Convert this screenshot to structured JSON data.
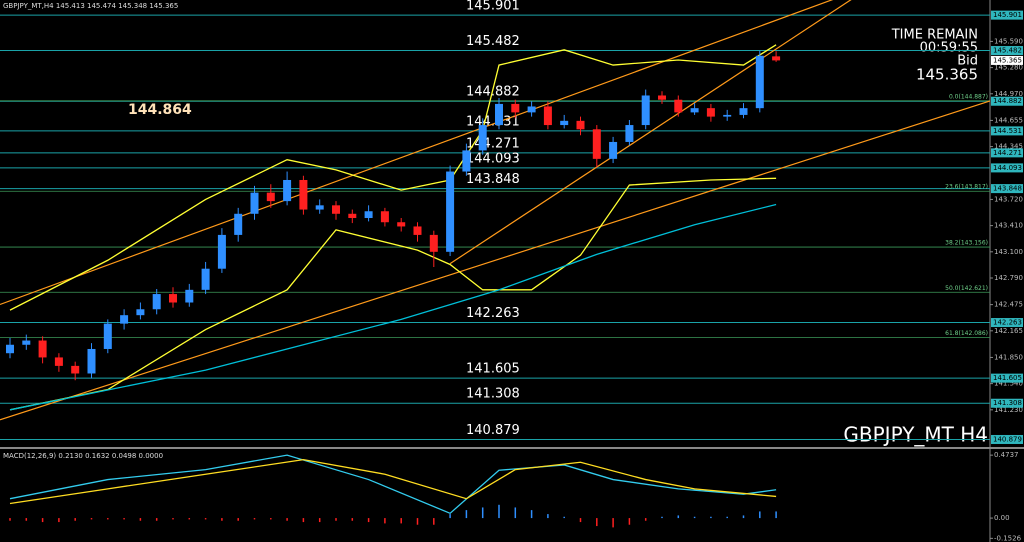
{
  "chart_data": [
    {
      "type": "candlestick",
      "title": "GBPJPY_MT,H4  145.413 145.474 145.348 145.365",
      "watermark": "GBPJPY_MT H4",
      "timer": {
        "label": "TIME REMAIN",
        "value": "00:59:55",
        "bid_label": "Bid"
      },
      "price_label": 144.864,
      "up_color": "#2f8fff",
      "down_color": "#ff2020",
      "open": [
        141.9,
        142.0,
        142.05,
        141.85,
        141.75,
        141.66,
        141.95,
        142.25,
        142.35,
        142.42,
        142.6,
        142.5,
        142.65,
        142.9,
        143.3,
        143.55,
        143.8,
        143.7,
        143.95,
        143.6,
        143.65,
        143.55,
        143.5,
        143.58,
        143.45,
        143.4,
        143.3,
        143.1,
        144.05,
        144.3,
        144.6,
        144.85,
        144.75,
        144.82,
        144.6,
        144.65,
        144.55,
        144.2,
        144.4,
        144.6,
        144.95,
        144.9,
        144.75,
        144.8,
        144.7,
        144.72,
        144.8,
        145.413
      ],
      "high": [
        142.08,
        142.12,
        142.1,
        141.9,
        141.8,
        142.02,
        142.3,
        142.42,
        142.5,
        142.66,
        142.68,
        142.72,
        142.98,
        143.38,
        143.62,
        143.88,
        143.9,
        144.05,
        144.0,
        143.72,
        143.7,
        143.6,
        143.65,
        143.62,
        143.5,
        143.45,
        143.35,
        144.12,
        144.38,
        144.68,
        144.92,
        144.9,
        144.88,
        144.88,
        144.72,
        144.7,
        144.6,
        144.46,
        144.66,
        145.02,
        145.0,
        144.95,
        144.86,
        144.85,
        144.78,
        144.86,
        145.48,
        145.474
      ],
      "low": [
        141.84,
        141.94,
        141.78,
        141.68,
        141.58,
        141.6,
        141.9,
        142.18,
        142.3,
        142.36,
        142.44,
        142.45,
        142.6,
        142.85,
        143.22,
        143.48,
        143.62,
        143.65,
        143.54,
        143.55,
        143.48,
        143.44,
        143.46,
        143.4,
        143.34,
        143.22,
        142.92,
        143.05,
        144.0,
        144.25,
        144.55,
        144.68,
        144.7,
        144.55,
        144.56,
        144.48,
        144.1,
        144.15,
        144.36,
        144.55,
        144.85,
        144.7,
        144.72,
        144.64,
        144.65,
        144.68,
        144.75,
        145.348
      ],
      "close": [
        142.0,
        142.05,
        141.85,
        141.75,
        141.66,
        141.95,
        142.25,
        142.35,
        142.42,
        142.6,
        142.5,
        142.65,
        142.9,
        143.3,
        143.55,
        143.8,
        143.7,
        143.95,
        143.6,
        143.65,
        143.55,
        143.5,
        143.58,
        143.45,
        143.4,
        143.3,
        143.1,
        144.05,
        144.3,
        144.6,
        144.85,
        144.75,
        144.82,
        144.6,
        144.65,
        144.55,
        144.2,
        144.4,
        144.6,
        144.95,
        144.9,
        144.75,
        144.8,
        144.7,
        144.72,
        144.8,
        145.42,
        145.365
      ],
      "ylim": [
        140.79,
        146.08
      ],
      "yticks": [
        {
          "value": 145.59,
          "label": "145.590"
        },
        {
          "value": 145.28,
          "label": "145.280"
        },
        {
          "value": 144.97,
          "label": "144.970"
        },
        144.655,
        144.345,
        {
          "value": 143.72,
          "label": "143.720"
        },
        {
          "value": 143.41,
          "label": "143.410"
        },
        {
          "value": 143.1,
          "label": "143.100"
        },
        {
          "value": 142.79,
          "label": "142.790"
        },
        142.475,
        142.165,
        {
          "value": 141.85,
          "label": "141.850"
        },
        {
          "value": 141.54,
          "label": "141.540"
        },
        {
          "value": 141.23,
          "label": "141.230"
        }
      ],
      "grid": false,
      "level_color": "#1aa3a8",
      "levels": [
        145.901,
        145.482,
        144.882,
        144.531,
        144.271,
        144.093,
        143.848,
        142.263,
        141.605,
        141.308,
        140.879
      ],
      "fib_color": "#3c9a5a",
      "fib_levels": [
        {
          "value": 144.887,
          "label": "0.0(144.887)"
        },
        {
          "value": 143.817,
          "label": "23.6(143.817)"
        },
        {
          "value": 143.156,
          "label": "38.2(143.156)"
        },
        {
          "value": 142.621,
          "label": "50.0(142.621)"
        },
        {
          "value": 142.086,
          "label": "61.8(142.086)"
        }
      ],
      "overlays": [
        {
          "color": "#ffff33",
          "x": [
            0,
            6,
            12,
            17,
            20,
            24,
            27,
            29,
            30,
            34,
            37,
            41,
            45,
            47
          ],
          "values": [
            142.41,
            143.0,
            143.72,
            144.19,
            144.07,
            143.83,
            143.95,
            144.54,
            145.31,
            145.49,
            145.31,
            145.37,
            145.31,
            145.55
          ]
        },
        {
          "color": "#ffff33",
          "x": [
            0,
            6,
            12,
            17,
            20,
            25,
            27,
            29,
            32,
            35,
            38,
            43,
            47
          ],
          "values": [
            141.23,
            141.47,
            142.18,
            142.65,
            143.36,
            143.12,
            142.95,
            142.65,
            142.65,
            143.06,
            143.89,
            143.95,
            143.97
          ]
        },
        {
          "color": "#00bfd8",
          "x": [
            0,
            12,
            24,
            30,
            36,
            42,
            47
          ],
          "values": [
            141.23,
            141.7,
            142.3,
            142.65,
            143.07,
            143.42,
            143.66
          ]
        }
      ],
      "trendline_color": "#ff9a1a",
      "trendlines": [
        {
          "x": [
            0,
            47
          ],
          "values": [
            142.52,
            145.84
          ]
        },
        {
          "x": [
            0,
            47
          ],
          "values": [
            141.15,
            144.07
          ]
        },
        {
          "x": [
            27,
            47
          ],
          "values": [
            142.96,
            145.5
          ]
        }
      ]
    },
    {
      "type": "macd",
      "title": "MACD(12,26,9) 0.2130 0.1632 0.0498 0.0000",
      "pos_color": "#2f8fff",
      "neg_color": "#ff2020",
      "histogram": [
        -0.02,
        -0.02,
        -0.03,
        -0.03,
        -0.02,
        -0.01,
        -0.01,
        -0.01,
        -0.02,
        -0.02,
        -0.01,
        -0.01,
        -0.01,
        -0.02,
        -0.02,
        -0.01,
        -0.01,
        -0.02,
        -0.03,
        -0.03,
        -0.02,
        -0.02,
        -0.03,
        -0.04,
        -0.04,
        -0.05,
        -0.05,
        0.03,
        0.06,
        0.08,
        0.1,
        0.08,
        0.06,
        0.03,
        0.01,
        -0.03,
        -0.06,
        -0.07,
        -0.05,
        -0.02,
        0.01,
        0.02,
        0.01,
        0.01,
        0.01,
        0.02,
        0.05,
        0.05
      ],
      "lines": [
        {
          "color": "#33ccee",
          "x": [
            0,
            6,
            12,
            17,
            22,
            27,
            30,
            34,
            37,
            41,
            45,
            47
          ],
          "values": [
            0.146,
            0.29,
            0.365,
            0.474,
            0.29,
            0.036,
            0.36,
            0.4,
            0.29,
            0.22,
            0.18,
            0.213
          ]
        },
        {
          "color": "#ffdd22",
          "x": [
            0,
            6,
            12,
            18,
            23,
            28,
            31,
            35,
            39,
            42,
            47
          ],
          "values": [
            0.11,
            0.22,
            0.33,
            0.44,
            0.33,
            0.146,
            0.365,
            0.42,
            0.29,
            0.22,
            0.163
          ]
        }
      ],
      "ylim": [
        -0.18,
        0.52
      ],
      "yticks": [
        0.4737,
        {
          "value": 0,
          "label": "0.00"
        },
        -0.1526
      ]
    }
  ]
}
